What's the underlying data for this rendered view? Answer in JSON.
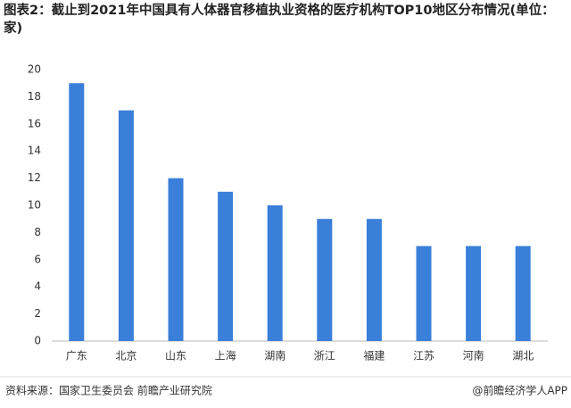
{
  "chart_data": {
    "type": "bar",
    "title": "图表2：截止到2021年中国具有人体器官移植执业资格的医疗机构TOP10地区分布情况(单位：家)",
    "categories": [
      "广东",
      "北京",
      "山东",
      "上海",
      "湖南",
      "浙江",
      "福建",
      "江苏",
      "河南",
      "湖北"
    ],
    "values": [
      19,
      17,
      12,
      11,
      10,
      9,
      9,
      7,
      7,
      7
    ],
    "color": "#3a7fd9",
    "ylim": [
      0,
      20
    ],
    "yticks": [
      0,
      2,
      4,
      6,
      8,
      10,
      12,
      14,
      16,
      18,
      20
    ],
    "grid": false,
    "source": "资料来源：国家卫生委员会 前瞻产业研究院",
    "brand": "@前瞻经济学人APP"
  }
}
